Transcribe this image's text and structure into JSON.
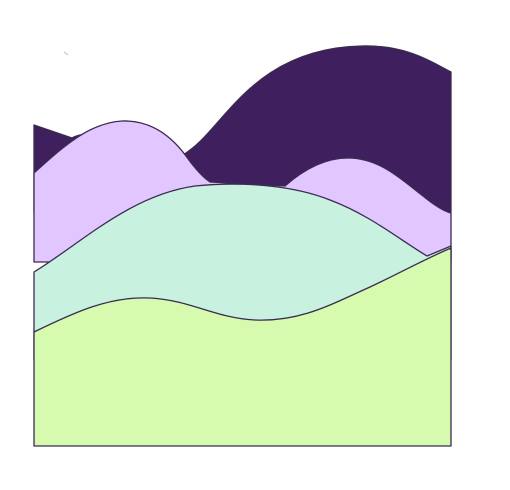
{
  "illustration": {
    "kind": "layered wave hills",
    "layers": [
      {
        "name": "back-hill",
        "color": "#3f1f5d"
      },
      {
        "name": "lavender-hills",
        "color": "#e2c6ff"
      },
      {
        "name": "mint-hill",
        "color": "#c8f1df"
      },
      {
        "name": "front-field",
        "color": "#d6fbae"
      }
    ],
    "outline_color": "#3a2b50",
    "background": "#ffffff"
  }
}
